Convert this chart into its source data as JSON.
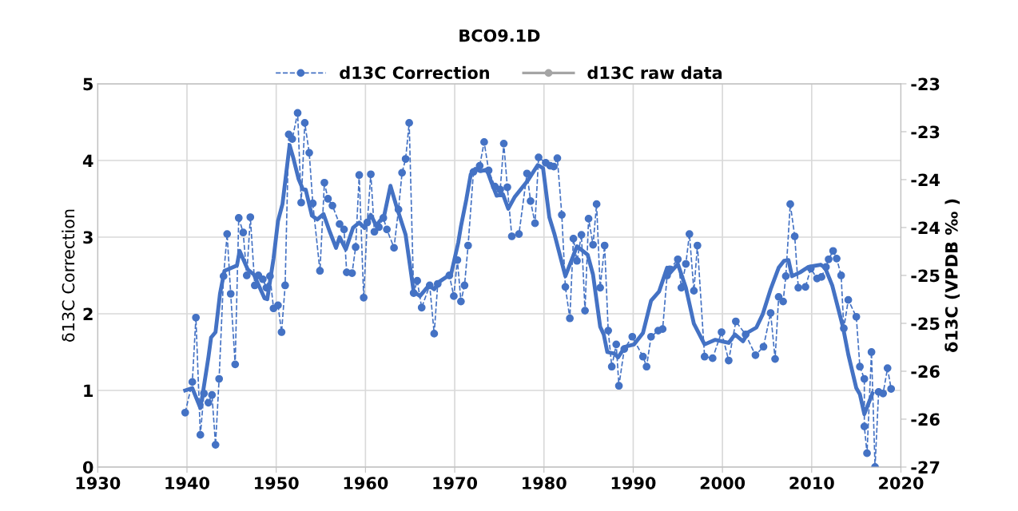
{
  "chart_data": {
    "type": "line",
    "title": "BCO9.1D",
    "ylabel": "δ13C Correction",
    "y2label": "δ13C (VPDB ‰ )",
    "xlim": [
      1930,
      2020
    ],
    "xticks": [
      1930,
      1940,
      1950,
      1960,
      1970,
      1980,
      1990,
      2000,
      2010,
      2020
    ],
    "ylim": [
      0,
      5
    ],
    "yticks": [
      0,
      1,
      2,
      3,
      4,
      5
    ],
    "y2lim": [
      -27,
      -23
    ],
    "y2ticks": [
      {
        "value": -27,
        "label": "-27"
      },
      {
        "value": -26.5,
        "label": "-26"
      },
      {
        "value": -26,
        "label": "-26"
      },
      {
        "value": -25.5,
        "label": "-25"
      },
      {
        "value": -25,
        "label": "-25"
      },
      {
        "value": -24.5,
        "label": "-24"
      },
      {
        "value": -24,
        "label": "-24"
      },
      {
        "value": -23.5,
        "label": "-23"
      },
      {
        "value": -23,
        "label": "-23"
      }
    ],
    "grid": true,
    "legend": "top",
    "series": [
      {
        "name": "d13C Correction",
        "color": "#4472c4",
        "marker": "circle",
        "line_style": "dashed",
        "x": [
          1939.8,
          1940.6,
          1941.0,
          1941.5,
          1941.9,
          1942.4,
          1942.8,
          1943.2,
          1943.6,
          1944.1,
          1944.5,
          1944.9,
          1945.4,
          1945.8,
          1946.3,
          1946.7,
          1947.1,
          1947.6,
          1948.0,
          1948.5,
          1948.9,
          1949.3,
          1949.7,
          1950.2,
          1950.6,
          1951.0,
          1951.4,
          1951.8,
          1952.4,
          1952.8,
          1953.2,
          1953.7,
          1954.1,
          1954.9,
          1955.4,
          1955.8,
          1956.3,
          1957.1,
          1957.6,
          1957.9,
          1958.5,
          1958.9,
          1959.3,
          1959.8,
          1960.2,
          1960.6,
          1961.0,
          1961.5,
          1962.0,
          1962.4,
          1963.2,
          1963.7,
          1964.1,
          1964.5,
          1964.9,
          1965.4,
          1965.8,
          1966.3,
          1967.2,
          1967.7,
          1968.1,
          1969.4,
          1969.9,
          1970.3,
          1970.7,
          1971.1,
          1971.5,
          1972.1,
          1972.8,
          1973.3,
          1973.8,
          1974.5,
          1975.1,
          1975.5,
          1975.9,
          1976.4,
          1977.2,
          1978.1,
          1978.5,
          1979.0,
          1979.4,
          1980.2,
          1980.7,
          1981.1,
          1981.5,
          1982.0,
          1982.4,
          1982.9,
          1983.3,
          1983.7,
          1984.2,
          1984.6,
          1985.0,
          1985.5,
          1985.9,
          1986.3,
          1986.8,
          1987.2,
          1987.6,
          1988.1,
          1988.4,
          1989.0,
          1989.9,
          1991.1,
          1991.5,
          1992.0,
          1992.8,
          1993.3,
          1993.8,
          1994.1,
          1995.0,
          1995.4,
          1995.9,
          1996.3,
          1996.8,
          1997.2,
          1998.0,
          1998.9,
          1999.9,
          2000.7,
          2001.5,
          2002.6,
          2003.7,
          2004.6,
          2005.4,
          2005.9,
          2006.3,
          2006.8,
          2007.1,
          2007.6,
          2008.1,
          2008.5,
          2009.3,
          2009.9,
          2010.6,
          2011.1,
          2011.6,
          2011.9,
          2012.4,
          2012.8,
          2013.3,
          2013.6,
          2014.1,
          2015.0,
          2015.4,
          2015.9,
          2015.9,
          2016.2,
          2016.7,
          2017.1,
          2017.5,
          2018.0,
          2018.5,
          2018.9
        ],
        "values": [
          0.71,
          1.11,
          1.95,
          0.42,
          0.96,
          0.84,
          0.94,
          0.29,
          1.15,
          2.49,
          3.04,
          2.26,
          1.34,
          3.25,
          3.06,
          2.5,
          3.26,
          2.37,
          2.5,
          2.45,
          2.34,
          2.49,
          2.07,
          2.11,
          1.76,
          2.37,
          4.34,
          4.28,
          4.62,
          3.45,
          4.49,
          4.1,
          3.44,
          2.56,
          3.71,
          3.5,
          3.41,
          3.17,
          3.1,
          2.54,
          2.53,
          2.87,
          3.81,
          2.21,
          3.19,
          3.82,
          3.07,
          3.13,
          3.25,
          3.1,
          2.86,
          3.36,
          3.84,
          4.02,
          4.49,
          2.27,
          2.43,
          2.08,
          2.37,
          1.74,
          2.39,
          2.5,
          2.23,
          2.7,
          2.16,
          2.37,
          2.89,
          3.85,
          3.93,
          4.24,
          3.87,
          3.66,
          3.62,
          4.22,
          3.65,
          3.01,
          3.04,
          3.83,
          3.47,
          3.18,
          4.04,
          3.97,
          3.93,
          3.92,
          4.03,
          3.29,
          2.35,
          1.94,
          2.98,
          2.69,
          3.03,
          2.04,
          3.24,
          2.9,
          3.43,
          2.34,
          2.89,
          1.78,
          1.31,
          1.6,
          1.06,
          1.54,
          1.7,
          1.44,
          1.31,
          1.7,
          1.78,
          1.8,
          2.5,
          2.58,
          2.71,
          2.34,
          2.65,
          3.04,
          2.3,
          2.89,
          1.44,
          1.42,
          1.76,
          1.39,
          1.9,
          1.73,
          1.46,
          1.57,
          2.01,
          1.41,
          2.22,
          2.16,
          2.49,
          3.43,
          3.01,
          2.34,
          2.35,
          2.59,
          2.46,
          2.48,
          2.61,
          2.71,
          2.82,
          2.72,
          2.5,
          1.81,
          2.18,
          1.96,
          1.31,
          1.15,
          0.53,
          0.18,
          1.5,
          0.0,
          0.98,
          0.96,
          1.29,
          1.02
        ]
      },
      {
        "name": "d13C raw data",
        "color": "#a5a5a5",
        "marker": "circle",
        "line_style": "solid"
      },
      {
        "color": "#4472c4",
        "marker": "none",
        "line_style": "solid",
        "x": [
          1939.8,
          1940.6,
          1941.5,
          1941.8,
          1942.4,
          1942.7,
          1943.2,
          1943.7,
          1944.2,
          1945.6,
          1945.9,
          1946.8,
          1947.5,
          1948.7,
          1949.0,
          1949.7,
          1950.2,
          1950.7,
          1951.5,
          1951.9,
          1952.5,
          1953.0,
          1953.3,
          1954.0,
          1954.6,
          1955.3,
          1956.0,
          1956.7,
          1957.1,
          1957.8,
          1958.6,
          1959.3,
          1959.9,
          1960.6,
          1961.2,
          1962.1,
          1962.8,
          1963.4,
          1964.5,
          1965.4,
          1966.1,
          1967.1,
          1967.7,
          1968.3,
          1969.6,
          1970.4,
          1970.7,
          1971.3,
          1971.8,
          1972.3,
          1972.9,
          1973.6,
          1974.1,
          1974.7,
          1975.4,
          1976.0,
          1976.7,
          1978.2,
          1979.3,
          1979.9,
          1980.6,
          1981.2,
          1982.4,
          1983.7,
          1984.9,
          1985.5,
          1986.3,
          1986.7,
          1987.1,
          1987.9,
          1988.3,
          1989.1,
          1990.1,
          1991.1,
          1992.0,
          1992.9,
          1993.8,
          1994.1,
          1995.0,
          1995.9,
          1996.8,
          1998.0,
          1999.2,
          2000.7,
          2001.4,
          2002.3,
          2002.9,
          2003.8,
          2004.5,
          2005.4,
          2006.3,
          2006.9,
          2007.4,
          2007.8,
          2008.7,
          2009.6,
          2011.0,
          2011.5,
          2012.3,
          2013.5,
          2014.1,
          2015.0,
          2015.4,
          2015.9,
          2016.8
        ],
        "values": [
          1.0,
          1.03,
          0.77,
          0.98,
          1.43,
          1.69,
          1.76,
          2.26,
          2.56,
          2.63,
          2.82,
          2.58,
          2.51,
          2.2,
          2.19,
          2.72,
          3.21,
          3.43,
          4.2,
          4.04,
          3.76,
          3.62,
          3.62,
          3.28,
          3.23,
          3.3,
          3.07,
          2.86,
          3.0,
          2.84,
          3.12,
          3.19,
          3.12,
          3.29,
          3.15,
          3.28,
          3.67,
          3.43,
          3.03,
          2.29,
          2.23,
          2.37,
          2.32,
          2.42,
          2.52,
          2.93,
          3.14,
          3.49,
          3.82,
          3.89,
          3.86,
          3.88,
          3.72,
          3.54,
          3.56,
          3.37,
          3.52,
          3.74,
          3.94,
          3.9,
          3.26,
          3.03,
          2.49,
          2.88,
          2.77,
          2.51,
          1.83,
          1.73,
          1.5,
          1.48,
          1.43,
          1.57,
          1.6,
          1.75,
          2.17,
          2.29,
          2.6,
          2.53,
          2.65,
          2.34,
          1.87,
          1.6,
          1.66,
          1.62,
          1.73,
          1.64,
          1.76,
          1.82,
          1.99,
          2.32,
          2.6,
          2.69,
          2.7,
          2.49,
          2.54,
          2.61,
          2.64,
          2.6,
          2.37,
          1.83,
          1.47,
          1.03,
          0.95,
          0.69,
          0.96
        ]
      }
    ]
  }
}
